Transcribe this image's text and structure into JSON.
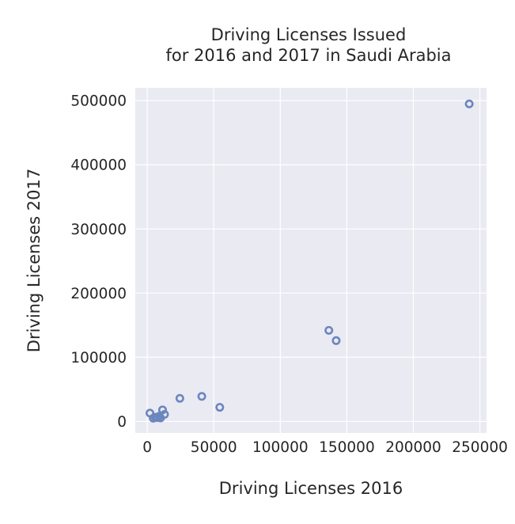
{
  "chart_data": {
    "type": "scatter",
    "title_lines": [
      "Driving Licenses Issued",
      "for 2016 and 2017 in Saudi Arabia"
    ],
    "xlabel": "Driving Licenses 2016",
    "ylabel": "Driving Licenses 2017",
    "xlim": [
      -9000,
      255000
    ],
    "ylim": [
      -18000,
      520000
    ],
    "x_ticks": [
      0,
      50000,
      100000,
      150000,
      200000,
      250000
    ],
    "x_tick_labels": [
      "0",
      "50000",
      "100000",
      "150000",
      "200000",
      "250000"
    ],
    "y_ticks": [
      0,
      100000,
      200000,
      300000,
      400000,
      500000
    ],
    "y_tick_labels": [
      "0",
      "100000",
      "200000",
      "300000",
      "400000",
      "500000"
    ],
    "grid": true,
    "marker": "hollow-circle",
    "colors": {
      "background": "#eaeaf2",
      "grid": "#ffffff",
      "marker": "#6b86bf",
      "text": "#262626"
    },
    "points": [
      {
        "x": 242000,
        "y": 495000
      },
      {
        "x": 136500,
        "y": 142000
      },
      {
        "x": 142000,
        "y": 126000
      },
      {
        "x": 41000,
        "y": 39000
      },
      {
        "x": 24500,
        "y": 36000
      },
      {
        "x": 54500,
        "y": 22000
      },
      {
        "x": 11500,
        "y": 18000
      },
      {
        "x": 2000,
        "y": 13000
      },
      {
        "x": 13000,
        "y": 11000
      },
      {
        "x": 9000,
        "y": 8000
      },
      {
        "x": 6000,
        "y": 6500
      },
      {
        "x": 4500,
        "y": 5000
      },
      {
        "x": 10000,
        "y": 5500
      },
      {
        "x": 7500,
        "y": 6000
      }
    ]
  }
}
